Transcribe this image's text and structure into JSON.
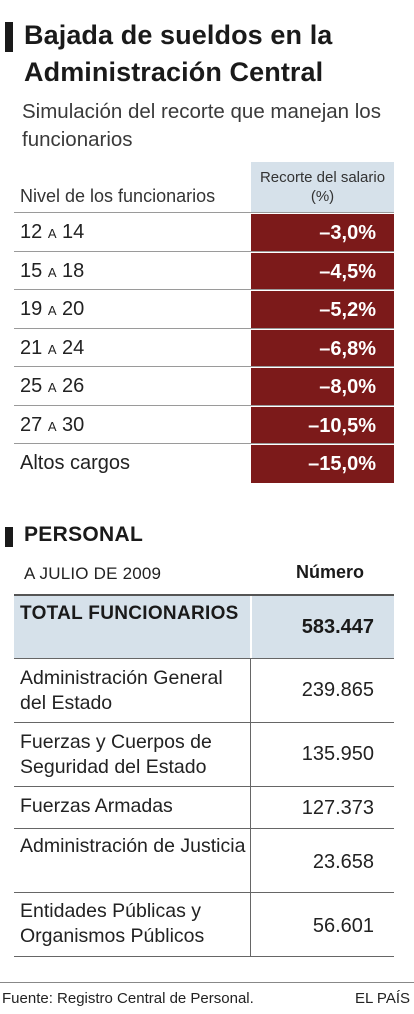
{
  "title": {
    "line1": "Bajada de sueldos en la",
    "line2": "Administración Central"
  },
  "subtitle": "Simulación del recorte que manejan los funcionarios",
  "cuts_table": {
    "level_header": "Nivel de los funcionarios",
    "value_header": "Recorte del salario (%)",
    "rows": [
      {
        "from": "12",
        "sep": "A",
        "to": "14",
        "label": "",
        "value": "–3,0%"
      },
      {
        "from": "15",
        "sep": "A",
        "to": "18",
        "label": "",
        "value": "–4,5%"
      },
      {
        "from": "19",
        "sep": "A",
        "to": "20",
        "label": "",
        "value": "–5,2%"
      },
      {
        "from": "21",
        "sep": "A",
        "to": "24",
        "label": "",
        "value": "–6,8%"
      },
      {
        "from": "25",
        "sep": "A",
        "to": "26",
        "label": "",
        "value": "–8,0%"
      },
      {
        "from": "27",
        "sep": "A",
        "to": "30",
        "label": "",
        "value": "–10,5%"
      },
      {
        "from": "",
        "sep": "",
        "to": "",
        "label": "Altos cargos",
        "value": "–15,0%"
      }
    ],
    "value_cell_color": "#7c1a1a",
    "header_cell_color": "#d6e1ea"
  },
  "personnel": {
    "section_title": "PERSONAL",
    "date_header": "A JULIO DE 2009",
    "number_header": "Número",
    "total": {
      "label": "TOTAL FUNCIONARIOS",
      "value": "583.447"
    },
    "rows": [
      {
        "label": "Administración General del Estado",
        "value": "239.865"
      },
      {
        "label": "Fuerzas y Cuerpos de Seguridad del Estado",
        "value": "135.950"
      },
      {
        "label": "Fuerzas Armadas",
        "value": "127.373"
      },
      {
        "label": "Administración de Justicia",
        "value": "23.658"
      },
      {
        "label": "Entidades Públicas y Organismos Públicos",
        "value": "56.601"
      }
    ]
  },
  "footer": {
    "source": "Fuente: Registro Central de Personal.",
    "brand": "EL PAÍS"
  }
}
